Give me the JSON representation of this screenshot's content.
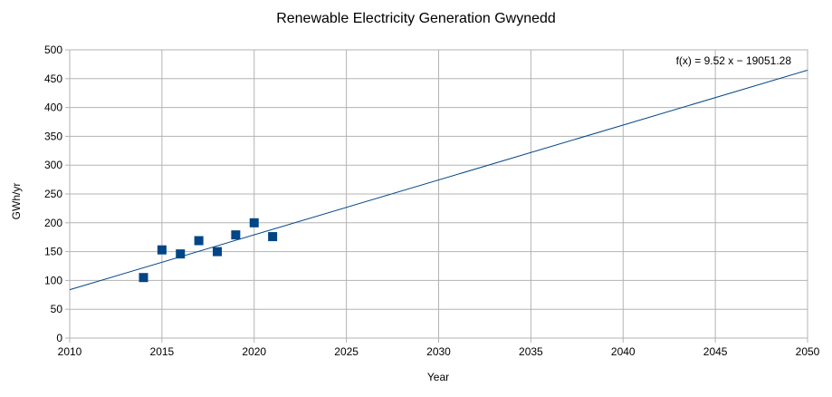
{
  "chart_data": {
    "type": "scatter",
    "title": "Renewable Electricity Generation Gwynedd",
    "xlabel": "Year",
    "ylabel": "GWh/yr",
    "xlim": [
      2010,
      2050
    ],
    "ylim": [
      0,
      500
    ],
    "xticks": [
      2010,
      2015,
      2020,
      2025,
      2030,
      2035,
      2040,
      2045,
      2050
    ],
    "yticks": [
      0,
      50,
      100,
      150,
      200,
      250,
      300,
      350,
      400,
      450,
      500
    ],
    "grid": true,
    "legend": "none",
    "series": [
      {
        "points": [
          {
            "x": 2014,
            "y": 105
          },
          {
            "x": 2015,
            "y": 153
          },
          {
            "x": 2016,
            "y": 146
          },
          {
            "x": 2017,
            "y": 169
          },
          {
            "x": 2018,
            "y": 150
          },
          {
            "x": 2019,
            "y": 179
          },
          {
            "x": 2020,
            "y": 200
          },
          {
            "x": 2021,
            "y": 176
          }
        ],
        "color": "#004586"
      }
    ],
    "trendline": {
      "type": "linear",
      "slope": 9.52,
      "intercept": -19051.28,
      "equation": "f(x) = 9.52 x − 19051.28",
      "color": "#004586"
    }
  }
}
